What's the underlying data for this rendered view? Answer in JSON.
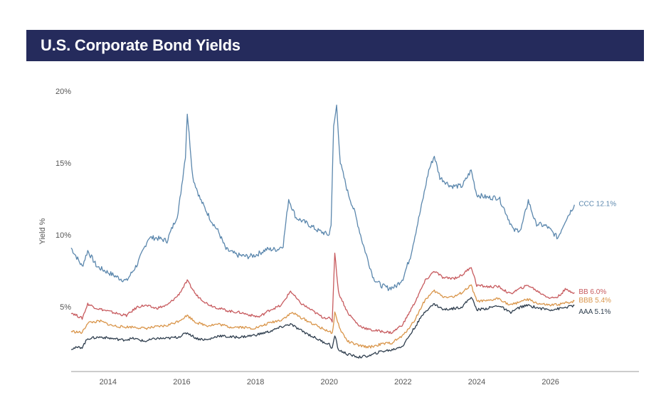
{
  "header": {
    "title": "U.S. Corporate Bond Yields"
  },
  "chart_data": {
    "type": "line",
    "title": "U.S. Corporate Bond Yields",
    "ylabel": "Yield %",
    "xlabel": "",
    "xlim": [
      2013.0,
      2028.4
    ],
    "ylim": [
      0.5,
      21.0
    ],
    "grid": false,
    "x_ticks": [
      2014,
      2016,
      2018,
      2020,
      2022,
      2024,
      2026
    ],
    "x_tick_labels": [
      "2014",
      "2016",
      "2018",
      "2020",
      "2022",
      "2024",
      "2026"
    ],
    "y_ticks": [
      5,
      10,
      15,
      20
    ],
    "y_tick_labels": [
      "5%",
      "10%",
      "15%",
      "20%"
    ],
    "series": [
      {
        "name": "CCC",
        "end_label": "CCC 12.1%",
        "color": "#5b87ad",
        "points": [
          [
            2013.0,
            9.1
          ],
          [
            2013.3,
            7.8
          ],
          [
            2013.45,
            8.9
          ],
          [
            2013.7,
            7.8
          ],
          [
            2014.0,
            7.4
          ],
          [
            2014.3,
            7.0
          ],
          [
            2014.5,
            6.8
          ],
          [
            2014.8,
            8.0
          ],
          [
            2015.1,
            9.8
          ],
          [
            2015.3,
            9.8
          ],
          [
            2015.6,
            9.6
          ],
          [
            2015.9,
            11.5
          ],
          [
            2016.1,
            15.5
          ],
          [
            2016.15,
            18.5
          ],
          [
            2016.3,
            14.0
          ],
          [
            2016.5,
            12.5
          ],
          [
            2016.8,
            11.0
          ],
          [
            2017.0,
            10.2
          ],
          [
            2017.2,
            9.0
          ],
          [
            2017.5,
            8.6
          ],
          [
            2017.8,
            8.5
          ],
          [
            2018.0,
            8.6
          ],
          [
            2018.3,
            9.0
          ],
          [
            2018.6,
            9.0
          ],
          [
            2018.75,
            9.3
          ],
          [
            2018.9,
            12.5
          ],
          [
            2019.1,
            11.2
          ],
          [
            2019.4,
            10.8
          ],
          [
            2019.7,
            10.3
          ],
          [
            2020.0,
            10.0
          ],
          [
            2020.05,
            10.8
          ],
          [
            2020.12,
            17.5
          ],
          [
            2020.2,
            19.0
          ],
          [
            2020.3,
            15.0
          ],
          [
            2020.5,
            13.0
          ],
          [
            2020.7,
            11.5
          ],
          [
            2020.9,
            9.5
          ],
          [
            2021.2,
            7.0
          ],
          [
            2021.4,
            6.5
          ],
          [
            2021.6,
            6.3
          ],
          [
            2021.8,
            6.4
          ],
          [
            2022.0,
            7.0
          ],
          [
            2022.2,
            8.5
          ],
          [
            2022.5,
            12.0
          ],
          [
            2022.7,
            14.5
          ],
          [
            2022.85,
            15.5
          ],
          [
            2023.0,
            14.0
          ],
          [
            2023.3,
            13.4
          ],
          [
            2023.6,
            13.4
          ],
          [
            2023.85,
            14.5
          ],
          [
            2024.0,
            12.8
          ],
          [
            2024.3,
            12.6
          ],
          [
            2024.6,
            12.6
          ],
          [
            2024.8,
            11.5
          ],
          [
            2025.0,
            10.3
          ],
          [
            2025.2,
            10.4
          ],
          [
            2025.4,
            12.4
          ],
          [
            2025.6,
            10.8
          ],
          [
            2025.9,
            10.6
          ],
          [
            2026.2,
            9.8
          ],
          [
            2026.4,
            11.0
          ],
          [
            2026.65,
            12.1
          ]
        ]
      },
      {
        "name": "BB",
        "end_label": "BB 6.0%",
        "color": "#c75a5e",
        "points": [
          [
            2013.0,
            4.6
          ],
          [
            2013.3,
            4.2
          ],
          [
            2013.45,
            5.2
          ],
          [
            2013.7,
            4.9
          ],
          [
            2014.0,
            4.7
          ],
          [
            2014.3,
            4.5
          ],
          [
            2014.5,
            4.4
          ],
          [
            2014.8,
            5.0
          ],
          [
            2015.0,
            5.1
          ],
          [
            2015.3,
            4.9
          ],
          [
            2015.6,
            5.1
          ],
          [
            2015.9,
            5.8
          ],
          [
            2016.15,
            6.8
          ],
          [
            2016.4,
            5.8
          ],
          [
            2016.7,
            5.2
          ],
          [
            2017.0,
            4.9
          ],
          [
            2017.3,
            4.7
          ],
          [
            2017.6,
            4.6
          ],
          [
            2017.9,
            4.4
          ],
          [
            2018.1,
            4.3
          ],
          [
            2018.4,
            4.8
          ],
          [
            2018.7,
            5.1
          ],
          [
            2018.95,
            6.1
          ],
          [
            2019.2,
            5.3
          ],
          [
            2019.5,
            4.8
          ],
          [
            2019.8,
            4.3
          ],
          [
            2020.0,
            4.2
          ],
          [
            2020.08,
            4.0
          ],
          [
            2020.15,
            8.8
          ],
          [
            2020.25,
            6.0
          ],
          [
            2020.5,
            4.6
          ],
          [
            2020.8,
            3.7
          ],
          [
            2021.1,
            3.4
          ],
          [
            2021.4,
            3.3
          ],
          [
            2021.7,
            3.2
          ],
          [
            2022.0,
            3.8
          ],
          [
            2022.3,
            5.2
          ],
          [
            2022.6,
            6.8
          ],
          [
            2022.85,
            7.5
          ],
          [
            2023.1,
            7.0
          ],
          [
            2023.4,
            7.0
          ],
          [
            2023.6,
            7.2
          ],
          [
            2023.85,
            7.8
          ],
          [
            2024.0,
            6.5
          ],
          [
            2024.3,
            6.4
          ],
          [
            2024.6,
            6.4
          ],
          [
            2024.9,
            5.9
          ],
          [
            2025.2,
            6.3
          ],
          [
            2025.4,
            6.5
          ],
          [
            2025.7,
            6.0
          ],
          [
            2026.0,
            5.6
          ],
          [
            2026.2,
            5.7
          ],
          [
            2026.4,
            6.2
          ],
          [
            2026.65,
            6.0
          ]
        ]
      },
      {
        "name": "BBB",
        "end_label": "BBB 5.4%",
        "color": "#d9954a",
        "points": [
          [
            2013.0,
            3.3
          ],
          [
            2013.3,
            3.2
          ],
          [
            2013.45,
            3.9
          ],
          [
            2013.8,
            4.0
          ],
          [
            2014.1,
            3.7
          ],
          [
            2014.4,
            3.6
          ],
          [
            2014.7,
            3.6
          ],
          [
            2015.0,
            3.5
          ],
          [
            2015.3,
            3.6
          ],
          [
            2015.6,
            3.7
          ],
          [
            2015.9,
            4.0
          ],
          [
            2016.15,
            4.4
          ],
          [
            2016.4,
            3.9
          ],
          [
            2016.7,
            3.7
          ],
          [
            2017.0,
            3.8
          ],
          [
            2017.3,
            3.6
          ],
          [
            2017.6,
            3.6
          ],
          [
            2017.9,
            3.5
          ],
          [
            2018.1,
            3.6
          ],
          [
            2018.4,
            3.9
          ],
          [
            2018.7,
            4.1
          ],
          [
            2019.0,
            4.6
          ],
          [
            2019.2,
            4.3
          ],
          [
            2019.5,
            3.9
          ],
          [
            2019.8,
            3.5
          ],
          [
            2020.0,
            3.3
          ],
          [
            2020.08,
            3.1
          ],
          [
            2020.15,
            4.6
          ],
          [
            2020.3,
            3.4
          ],
          [
            2020.5,
            2.6
          ],
          [
            2020.8,
            2.3
          ],
          [
            2021.1,
            2.2
          ],
          [
            2021.4,
            2.4
          ],
          [
            2021.7,
            2.5
          ],
          [
            2022.0,
            3.0
          ],
          [
            2022.3,
            4.0
          ],
          [
            2022.6,
            5.5
          ],
          [
            2022.85,
            6.1
          ],
          [
            2023.1,
            5.7
          ],
          [
            2023.4,
            5.7
          ],
          [
            2023.6,
            6.0
          ],
          [
            2023.85,
            6.5
          ],
          [
            2024.0,
            5.4
          ],
          [
            2024.3,
            5.4
          ],
          [
            2024.6,
            5.6
          ],
          [
            2024.9,
            5.1
          ],
          [
            2025.2,
            5.4
          ],
          [
            2025.4,
            5.5
          ],
          [
            2025.7,
            5.2
          ],
          [
            2026.0,
            5.1
          ],
          [
            2026.3,
            5.2
          ],
          [
            2026.65,
            5.4
          ]
        ]
      },
      {
        "name": "AAA",
        "end_label": "AAA 5.1%",
        "color": "#2f3e4e",
        "points": [
          [
            2013.0,
            2.1
          ],
          [
            2013.3,
            2.2
          ],
          [
            2013.45,
            2.8
          ],
          [
            2013.8,
            2.9
          ],
          [
            2014.1,
            2.8
          ],
          [
            2014.4,
            2.7
          ],
          [
            2014.7,
            2.8
          ],
          [
            2015.0,
            2.6
          ],
          [
            2015.3,
            2.8
          ],
          [
            2015.6,
            2.8
          ],
          [
            2015.9,
            2.9
          ],
          [
            2016.15,
            3.2
          ],
          [
            2016.4,
            2.8
          ],
          [
            2016.7,
            2.7
          ],
          [
            2017.0,
            3.0
          ],
          [
            2017.3,
            2.9
          ],
          [
            2017.6,
            2.9
          ],
          [
            2017.9,
            3.0
          ],
          [
            2018.1,
            3.1
          ],
          [
            2018.4,
            3.3
          ],
          [
            2018.7,
            3.6
          ],
          [
            2018.95,
            3.8
          ],
          [
            2019.2,
            3.4
          ],
          [
            2019.5,
            3.0
          ],
          [
            2019.8,
            2.6
          ],
          [
            2020.0,
            2.4
          ],
          [
            2020.08,
            2.1
          ],
          [
            2020.15,
            3.0
          ],
          [
            2020.25,
            2.0
          ],
          [
            2020.5,
            1.7
          ],
          [
            2020.8,
            1.5
          ],
          [
            2021.1,
            1.6
          ],
          [
            2021.4,
            1.9
          ],
          [
            2021.7,
            2.0
          ],
          [
            2022.0,
            2.3
          ],
          [
            2022.3,
            3.5
          ],
          [
            2022.6,
            4.7
          ],
          [
            2022.85,
            5.2
          ],
          [
            2023.1,
            4.8
          ],
          [
            2023.4,
            4.9
          ],
          [
            2023.6,
            5.0
          ],
          [
            2023.85,
            5.7
          ],
          [
            2024.0,
            4.8
          ],
          [
            2024.3,
            4.9
          ],
          [
            2024.6,
            5.1
          ],
          [
            2024.9,
            4.6
          ],
          [
            2025.2,
            5.0
          ],
          [
            2025.4,
            5.1
          ],
          [
            2025.7,
            4.9
          ],
          [
            2026.0,
            4.8
          ],
          [
            2026.3,
            4.9
          ],
          [
            2026.65,
            5.1
          ]
        ]
      }
    ]
  }
}
